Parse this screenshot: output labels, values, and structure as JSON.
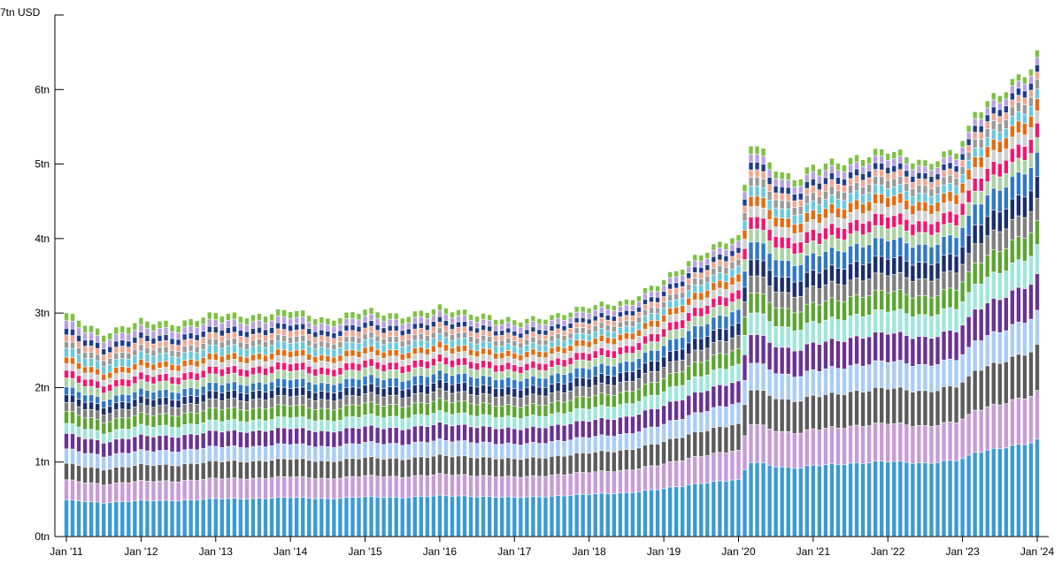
{
  "chart_data": {
    "type": "bar",
    "stacked": true,
    "y_unit_label": "7tn USD",
    "ylim": [
      0,
      7
    ],
    "y_ticks": [
      {
        "value": 0,
        "label": "0tn"
      },
      {
        "value": 1,
        "label": "1tn"
      },
      {
        "value": 2,
        "label": "2tn"
      },
      {
        "value": 3,
        "label": "3tn"
      },
      {
        "value": 4,
        "label": "4tn"
      },
      {
        "value": 5,
        "label": "5tn"
      },
      {
        "value": 6,
        "label": "6tn"
      }
    ],
    "x_ticks": [
      "Jan '11",
      "Jan '12",
      "Jan '13",
      "Jan '14",
      "Jan '15",
      "Jan '16",
      "Jan '17",
      "Jan '18",
      "Jan '19",
      "Jan '20",
      "Jan '21",
      "Jan '22",
      "Jan '23",
      "Jan '24"
    ],
    "x_start": "2011-01",
    "x_end": "2024-01",
    "frequency": "monthly",
    "totals_anchor": [
      {
        "date": "2011-01",
        "total": 3.0
      },
      {
        "date": "2011-07",
        "total": 2.72
      },
      {
        "date": "2012-01",
        "total": 2.9
      },
      {
        "date": "2012-07",
        "total": 2.85
      },
      {
        "date": "2013-01",
        "total": 3.0
      },
      {
        "date": "2013-07",
        "total": 2.95
      },
      {
        "date": "2014-01",
        "total": 3.05
      },
      {
        "date": "2014-07",
        "total": 2.9
      },
      {
        "date": "2015-01",
        "total": 3.05
      },
      {
        "date": "2015-07",
        "total": 2.95
      },
      {
        "date": "2016-01",
        "total": 3.08
      },
      {
        "date": "2016-07",
        "total": 2.98
      },
      {
        "date": "2017-01",
        "total": 2.9
      },
      {
        "date": "2017-07",
        "total": 2.95
      },
      {
        "date": "2018-01",
        "total": 3.1
      },
      {
        "date": "2018-07",
        "total": 3.15
      },
      {
        "date": "2019-01",
        "total": 3.45
      },
      {
        "date": "2019-07",
        "total": 3.8
      },
      {
        "date": "2019-12",
        "total": 4.02
      },
      {
        "date": "2020-01",
        "total": 4.0
      },
      {
        "date": "2020-02",
        "total": 4.72
      },
      {
        "date": "2020-03",
        "total": 5.3
      },
      {
        "date": "2020-05",
        "total": 5.15
      },
      {
        "date": "2020-08",
        "total": 4.85
      },
      {
        "date": "2020-11",
        "total": 4.82
      },
      {
        "date": "2021-01",
        "total": 4.98
      },
      {
        "date": "2021-07",
        "total": 5.05
      },
      {
        "date": "2022-01",
        "total": 5.2
      },
      {
        "date": "2022-07",
        "total": 5.0
      },
      {
        "date": "2022-12",
        "total": 5.2
      },
      {
        "date": "2023-02",
        "total": 5.45
      },
      {
        "date": "2023-03",
        "total": 5.7
      },
      {
        "date": "2023-07",
        "total": 5.95
      },
      {
        "date": "2023-12",
        "total": 6.3
      },
      {
        "date": "2024-01",
        "total": 6.45
      }
    ],
    "series_colors": [
      "#3a9ad3",
      "#c89bd6",
      "#5b5b5b",
      "#a9cdf5",
      "#6a3291",
      "#9ee6db",
      "#5aa630",
      "#7f7f7f",
      "#1a2f6b",
      "#2f78c4",
      "#a9d3a3",
      "#f1166f",
      "#cfcfcf",
      "#e56b10",
      "#67c9e0",
      "#9a9a9a",
      "#f2a58f",
      "#1e3d8a",
      "#b7a2e0",
      "#7cc242"
    ],
    "series_shares_start": [
      0.165,
      0.09,
      0.075,
      0.065,
      0.07,
      0.045,
      0.055,
      0.04,
      0.035,
      0.035,
      0.04,
      0.035,
      0.03,
      0.03,
      0.04,
      0.03,
      0.03,
      0.03,
      0.035,
      0.035
    ],
    "series_shares_end": [
      0.2,
      0.1,
      0.095,
      0.07,
      0.075,
      0.06,
      0.05,
      0.045,
      0.045,
      0.05,
      0.03,
      0.03,
      0.025,
      0.025,
      0.02,
      0.02,
      0.015,
      0.015,
      0.015,
      0.015
    ]
  }
}
